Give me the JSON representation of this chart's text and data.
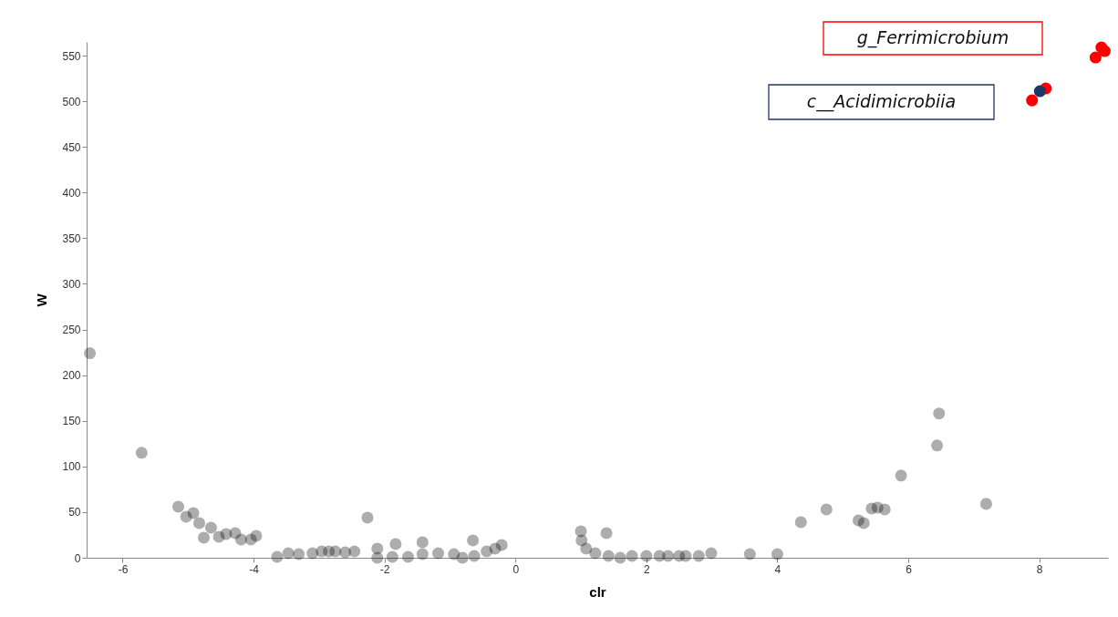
{
  "chart_data": {
    "type": "scatter",
    "xlabel": "clr",
    "ylabel": "W",
    "xlim": [
      -6.55,
      9.05
    ],
    "ylim": [
      0,
      565
    ],
    "xticks": [
      -6,
      -4,
      -2,
      0,
      2,
      4,
      6,
      8
    ],
    "yticks": [
      0,
      50,
      100,
      150,
      200,
      250,
      300,
      350,
      400,
      450,
      500,
      550
    ],
    "grid": false,
    "marker": "circle",
    "series": [
      {
        "color": "#000000",
        "x": [
          -6.5,
          -5.71,
          -5.15,
          -5.03,
          -4.92,
          -4.83,
          -4.76,
          -4.65,
          -4.53,
          -4.42,
          -4.28,
          -4.19,
          -4.04,
          -3.96,
          -3.64,
          -3.47,
          -3.31,
          -3.1,
          -2.96,
          -2.85,
          -2.75,
          -2.6,
          -2.46,
          -2.26,
          -2.11,
          -1.83,
          -1.42,
          -0.65,
          -2.11,
          -1.88,
          -1.64,
          -1.42,
          -1.18,
          -0.94,
          -0.81,
          -0.63,
          -0.44,
          -0.31,
          -0.21,
          1.0,
          1.01,
          1.08,
          1.22,
          1.42,
          1.6,
          1.78,
          1.39,
          2.0,
          2.2,
          2.33,
          2.5,
          2.6,
          2.8,
          2.99,
          3.58,
          4.0,
          4.36,
          4.75,
          5.24,
          5.32,
          5.44,
          5.53,
          5.64,
          5.89,
          6.44,
          6.47,
          7.19
        ],
        "values": [
          224,
          115,
          56,
          45,
          49,
          38,
          22,
          33,
          23,
          26,
          27,
          20,
          20,
          24,
          1,
          5,
          4,
          5,
          7,
          7,
          7,
          6,
          7,
          44,
          10,
          15,
          17,
          19,
          0,
          1,
          1,
          4,
          5,
          4,
          0,
          2,
          7,
          10,
          14,
          29,
          19,
          10,
          5,
          2,
          0,
          2,
          27,
          2,
          2,
          2,
          2,
          2,
          2,
          5,
          4,
          4,
          39,
          53,
          41,
          38,
          54,
          55,
          53,
          90,
          123,
          158,
          59
        ]
      },
      {
        "color": "#ff0000",
        "x": [
          8.86,
          8.95,
          9.0,
          7.89,
          8.1
        ],
        "values": [
          548,
          559,
          555,
          501,
          514
        ]
      },
      {
        "color": "#1f3864",
        "x": [
          8.01
        ],
        "values": [
          511
        ]
      }
    ],
    "annotations": [
      "g_Ferrimicrobium",
      "c__Acidimicrobiia"
    ]
  }
}
